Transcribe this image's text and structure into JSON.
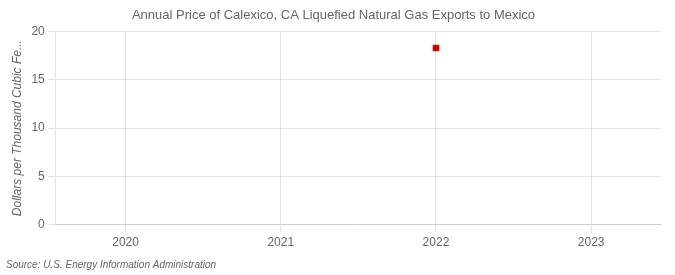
{
  "chart_data": {
    "type": "scatter",
    "title": "Annual Price of Calexico, CA Liquefied Natural Gas Exports to Mexico",
    "ylabel": "Dollars per Thousand Cubic Fe...",
    "source": "Source: U.S. Energy Information Administration",
    "x": [
      2022
    ],
    "values": [
      18.3
    ],
    "color": "#cc0000",
    "marker": "square",
    "xlim": [
      2019.55,
      2023.45
    ],
    "ylim": [
      0,
      20
    ],
    "xticks": [
      2020,
      2021,
      2022,
      2023
    ],
    "yticks": [
      0,
      5,
      10,
      15,
      20
    ],
    "grid": true
  }
}
